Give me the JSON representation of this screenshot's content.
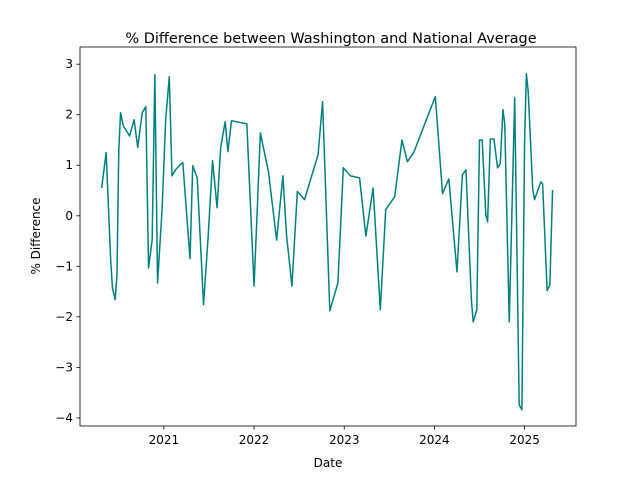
{
  "chart_data": {
    "type": "line",
    "title": "% Difference between Washington and National Average",
    "x_label": "Date",
    "y_label": "% Difference",
    "color": "#008080",
    "x": [
      2020.31,
      2020.36,
      2020.41,
      2020.43,
      2020.46,
      2020.48,
      2020.5,
      2020.52,
      2020.55,
      2020.62,
      2020.67,
      2020.71,
      2020.76,
      2020.8,
      2020.83,
      2020.87,
      2020.9,
      2020.93,
      2020.98,
      2021.02,
      2021.06,
      2021.09,
      2021.13,
      2021.18,
      2021.21,
      2021.29,
      2021.32,
      2021.37,
      2021.44,
      2021.49,
      2021.54,
      2021.59,
      2021.63,
      2021.68,
      2021.71,
      2021.75,
      2021.92,
      2022.0,
      2022.04,
      2022.07,
      2022.16,
      2022.25,
      2022.32,
      2022.36,
      2022.42,
      2022.48,
      2022.56,
      2022.71,
      2022.76,
      2022.84,
      2022.93,
      2022.99,
      2023.07,
      2023.17,
      2023.24,
      2023.32,
      2023.4,
      2023.46,
      2023.56,
      2023.64,
      2023.7,
      2023.77,
      2024.01,
      2024.09,
      2024.16,
      2024.25,
      2024.31,
      2024.35,
      2024.41,
      2024.43,
      2024.47,
      2024.5,
      2024.53,
      2024.57,
      2024.59,
      2024.62,
      2024.66,
      2024.7,
      2024.73,
      2024.76,
      2024.78,
      2024.83,
      2024.89,
      2024.94,
      2024.97,
      2025.0,
      2025.02,
      2025.04,
      2025.09,
      2025.11,
      2025.18,
      2025.2,
      2025.25,
      2025.28,
      2025.31
    ],
    "values": [
      0.55,
      1.25,
      -0.87,
      -1.43,
      -1.66,
      -1.17,
      1.3,
      2.04,
      1.78,
      1.58,
      1.9,
      1.35,
      2.04,
      2.16,
      -1.03,
      -0.48,
      2.79,
      -1.33,
      0.12,
      1.9,
      2.75,
      0.79,
      0.91,
      1.01,
      1.05,
      -0.85,
      0.99,
      0.75,
      -1.76,
      -0.44,
      1.09,
      0.16,
      1.35,
      1.86,
      1.27,
      1.88,
      1.82,
      -1.39,
      0.32,
      1.64,
      0.87,
      -0.48,
      0.79,
      -0.38,
      -1.39,
      0.48,
      0.32,
      1.21,
      2.26,
      -1.88,
      -1.33,
      0.95,
      0.79,
      0.75,
      -0.4,
      0.55,
      -1.86,
      0.12,
      0.38,
      1.5,
      1.07,
      1.25,
      2.36,
      0.44,
      0.73,
      -1.11,
      0.81,
      0.91,
      -1.66,
      -2.1,
      -1.86,
      1.5,
      1.5,
      0.02,
      -0.12,
      1.52,
      1.52,
      0.95,
      1.03,
      2.1,
      1.82,
      -2.1,
      2.34,
      -3.74,
      -3.84,
      1.5,
      2.81,
      2.46,
      0.53,
      0.32,
      0.67,
      0.63,
      -1.48,
      -1.37,
      0.51
    ],
    "xlim": [
      2020.07,
      2025.57
    ],
    "xticks": [
      2021,
      2022,
      2023,
      2024,
      2025
    ],
    "ylim": [
      -4.16,
      3.34
    ],
    "yticks": [
      {
        "value": -4,
        "label": "−4"
      },
      {
        "value": -3,
        "label": "−3"
      },
      {
        "value": -2,
        "label": "−2"
      },
      {
        "value": -1,
        "label": "−1"
      },
      0,
      1,
      2,
      3
    ]
  }
}
